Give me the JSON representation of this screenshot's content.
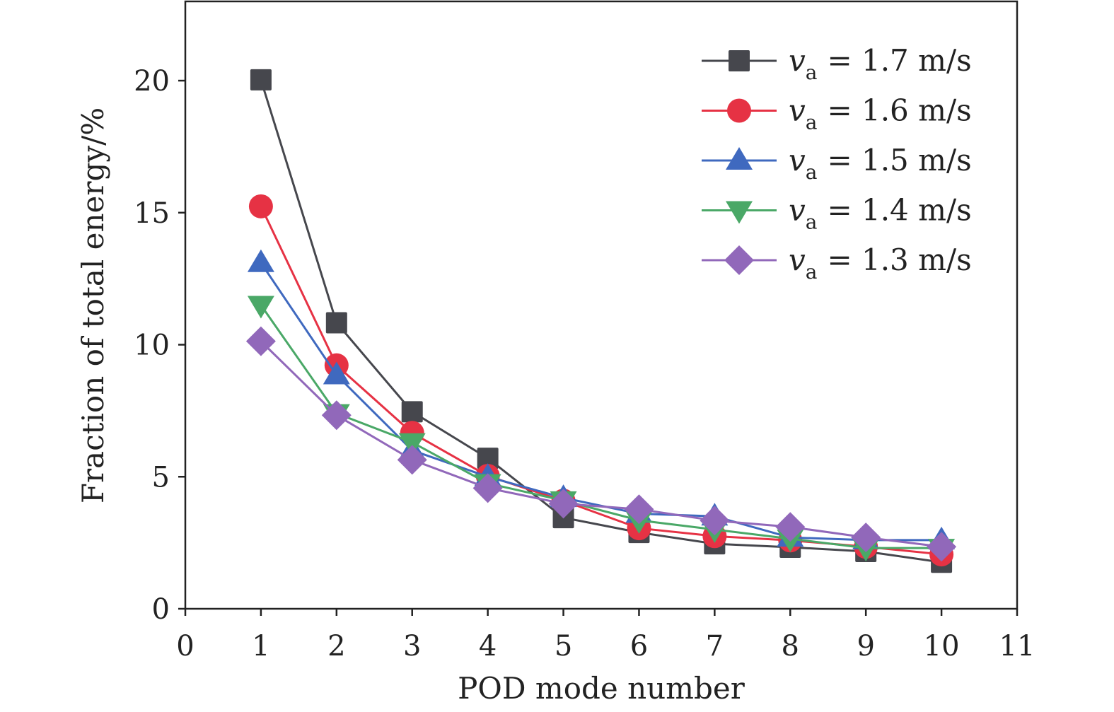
{
  "chart_data": {
    "type": "line",
    "title": "",
    "xlabel": "POD mode number",
    "ylabel": "Fraction of total energy/%",
    "xlim": [
      0,
      11
    ],
    "ylim": [
      0,
      23
    ],
    "xticks": [
      0,
      1,
      2,
      3,
      4,
      5,
      6,
      7,
      8,
      9,
      10,
      11
    ],
    "yticks": [
      0,
      5,
      10,
      15,
      20
    ],
    "grid": false,
    "legend_position": "top-right",
    "x": [
      1,
      2,
      3,
      4,
      5,
      6,
      7,
      8,
      9,
      10
    ],
    "series": [
      {
        "symbol": "v",
        "subscript": "a",
        "value_text": "= 1.7 m/s",
        "color": "#46474d",
        "marker": "square",
        "values": [
          20.03,
          10.83,
          7.46,
          5.7,
          3.45,
          2.89,
          2.46,
          2.33,
          2.17,
          1.76
        ]
      },
      {
        "symbol": "v",
        "subscript": "a",
        "value_text": "= 1.6 m/s",
        "color": "#e63244",
        "marker": "circle",
        "values": [
          15.24,
          9.22,
          6.66,
          5.03,
          4.09,
          3.05,
          2.75,
          2.59,
          2.35,
          2.06
        ]
      },
      {
        "symbol": "v",
        "subscript": "a",
        "value_text": "= 1.5 m/s",
        "color": "#3f69bf",
        "marker": "triangle-up",
        "values": [
          13.1,
          8.85,
          6.0,
          5.0,
          4.2,
          3.6,
          3.5,
          2.7,
          2.6,
          2.6
        ]
      },
      {
        "symbol": "v",
        "subscript": "a",
        "value_text": "= 1.4 m/s",
        "color": "#4aa867",
        "marker": "triangle-down",
        "values": [
          11.5,
          7.4,
          6.3,
          4.75,
          4.1,
          3.35,
          3.0,
          2.65,
          2.3,
          2.3
        ]
      },
      {
        "symbol": "v",
        "subscript": "a",
        "value_text": "= 1.3 m/s",
        "color": "#9168ba",
        "marker": "diamond",
        "values": [
          10.13,
          7.33,
          5.64,
          4.57,
          3.98,
          3.77,
          3.34,
          3.1,
          2.7,
          2.35
        ]
      }
    ]
  }
}
